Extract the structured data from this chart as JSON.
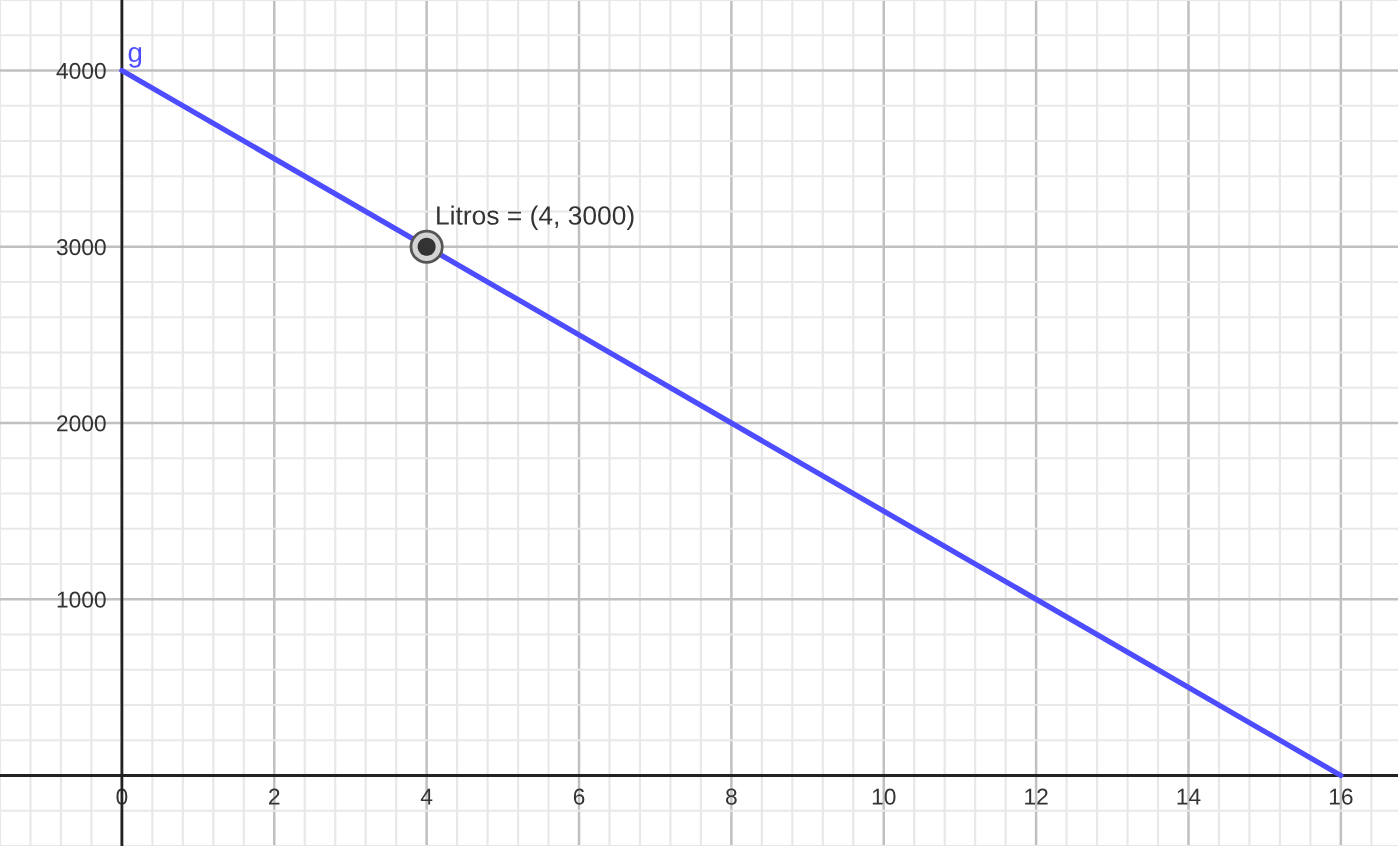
{
  "chart_data": {
    "type": "line",
    "xlim": [
      -1.6,
      16.75
    ],
    "ylim": [
      -370,
      4400
    ],
    "xticks": [
      0,
      2,
      4,
      6,
      8,
      10,
      12,
      14,
      16
    ],
    "yticks": [
      1000,
      2000,
      3000,
      4000
    ],
    "grid": true,
    "series": [
      {
        "name": "g",
        "color": "#4d4dff",
        "x": [
          0,
          16
        ],
        "values": [
          4000,
          0
        ]
      },
      {
        "type": "scatter",
        "color": "#333333",
        "marker": "circle",
        "x": [
          4
        ],
        "values": [
          3000
        ]
      }
    ],
    "annotations": [
      {
        "text": "Litros = (4, 3000)",
        "x": 4,
        "y": 3000
      }
    ]
  }
}
